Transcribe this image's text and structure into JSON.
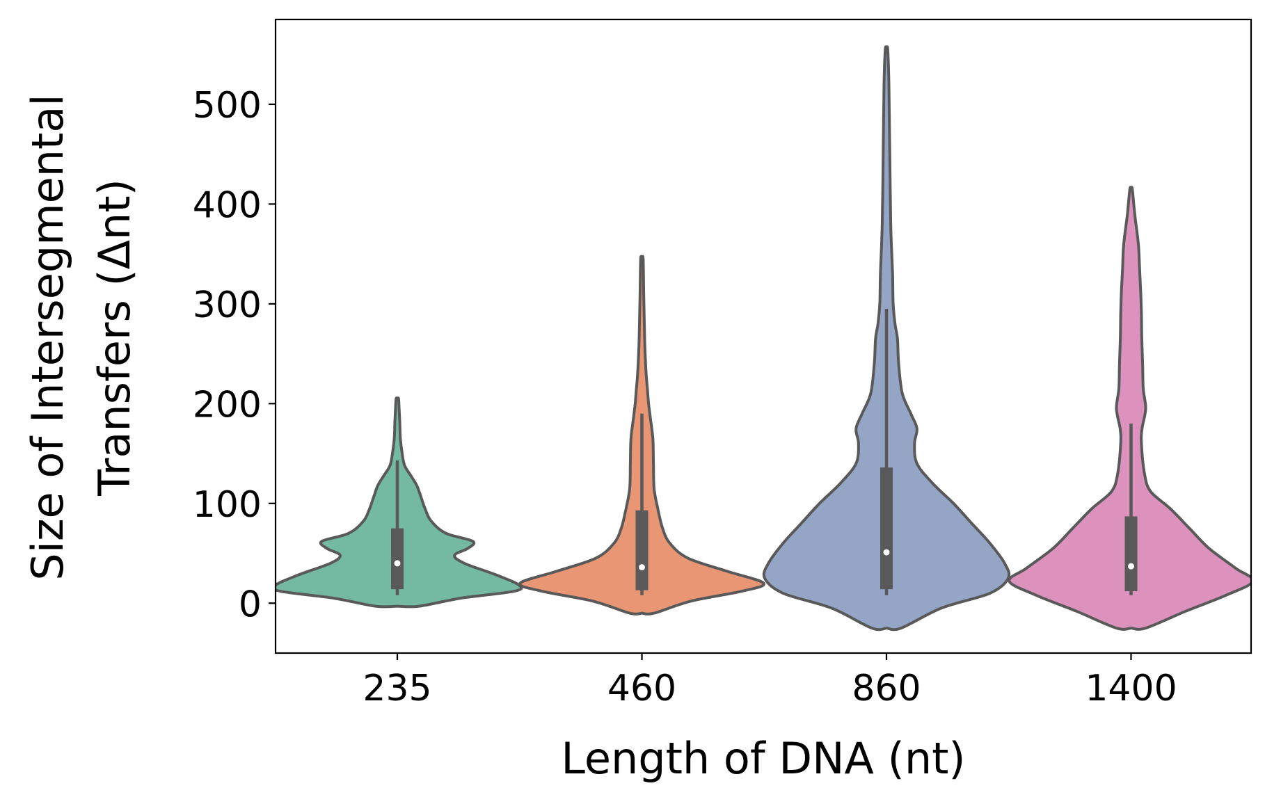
{
  "chart_data": {
    "type": "violin",
    "title": "",
    "xlabel": "Length of DNA (nt)",
    "ylabel_lines": [
      "Size of Intersegmental",
      "Transfers (Δnt)"
    ],
    "ylim": [
      -50,
      585
    ],
    "yticks": [
      0,
      100,
      200,
      300,
      400,
      500
    ],
    "ytick_labels": [
      "0",
      "100",
      "200",
      "300",
      "400",
      "500"
    ],
    "categories": [
      "235",
      "460",
      "860",
      "1400"
    ],
    "grid": false,
    "legend": "none",
    "series": [
      {
        "category": "235",
        "color": "#74b9a1",
        "box": {
          "min": 8,
          "q1": 14,
          "median": 40,
          "q3": 75,
          "max": 143
        },
        "density": [
          [
            -3,
            0.18
          ],
          [
            5,
            0.52
          ],
          [
            12,
            0.96
          ],
          [
            18,
            1.0
          ],
          [
            28,
            0.82
          ],
          [
            40,
            0.55
          ],
          [
            48,
            0.47
          ],
          [
            55,
            0.58
          ],
          [
            62,
            0.62
          ],
          [
            70,
            0.4
          ],
          [
            82,
            0.28
          ],
          [
            94,
            0.23
          ],
          [
            108,
            0.19
          ],
          [
            118,
            0.16
          ],
          [
            128,
            0.11
          ],
          [
            138,
            0.06
          ],
          [
            150,
            0.04
          ],
          [
            165,
            0.025
          ],
          [
            182,
            0.02
          ],
          [
            195,
            0.015
          ],
          [
            205,
            0.01
          ]
        ]
      },
      {
        "category": "460",
        "color": "#e99675",
        "box": {
          "min": 8,
          "q1": 13,
          "median": 36,
          "q3": 93,
          "max": 190
        },
        "density": [
          [
            -10,
            0.1
          ],
          [
            2,
            0.4
          ],
          [
            12,
            0.82
          ],
          [
            20,
            1.0
          ],
          [
            32,
            0.7
          ],
          [
            45,
            0.38
          ],
          [
            60,
            0.23
          ],
          [
            75,
            0.17
          ],
          [
            95,
            0.13
          ],
          [
            115,
            0.1
          ],
          [
            140,
            0.095
          ],
          [
            165,
            0.09
          ],
          [
            185,
            0.07
          ],
          [
            200,
            0.055
          ],
          [
            215,
            0.045
          ],
          [
            230,
            0.035
          ],
          [
            255,
            0.025
          ],
          [
            280,
            0.02
          ],
          [
            310,
            0.015
          ],
          [
            345,
            0.01
          ]
        ]
      },
      {
        "category": "860",
        "color": "#94a5c5",
        "box": {
          "min": 8,
          "q1": 14,
          "median": 51,
          "q3": 136,
          "max": 295
        },
        "density": [
          [
            -25,
            0.12
          ],
          [
            -5,
            0.45
          ],
          [
            10,
            0.85
          ],
          [
            25,
            1.0
          ],
          [
            40,
            0.97
          ],
          [
            60,
            0.85
          ],
          [
            80,
            0.7
          ],
          [
            100,
            0.55
          ],
          [
            120,
            0.38
          ],
          [
            140,
            0.25
          ],
          [
            160,
            0.23
          ],
          [
            175,
            0.25
          ],
          [
            190,
            0.2
          ],
          [
            210,
            0.13
          ],
          [
            240,
            0.1
          ],
          [
            265,
            0.09
          ],
          [
            280,
            0.07
          ],
          [
            300,
            0.055
          ],
          [
            330,
            0.05
          ],
          [
            360,
            0.04
          ],
          [
            380,
            0.035
          ],
          [
            420,
            0.03
          ],
          [
            470,
            0.025
          ],
          [
            520,
            0.02
          ],
          [
            555,
            0.01
          ]
        ]
      },
      {
        "category": "1400",
        "color": "#dc92bc",
        "box": {
          "min": 8,
          "q1": 12,
          "median": 37,
          "q3": 87,
          "max": 180
        },
        "density": [
          [
            -25,
            0.12
          ],
          [
            -8,
            0.45
          ],
          [
            8,
            0.78
          ],
          [
            22,
            1.0
          ],
          [
            35,
            0.86
          ],
          [
            55,
            0.64
          ],
          [
            75,
            0.48
          ],
          [
            95,
            0.32
          ],
          [
            112,
            0.16
          ],
          [
            130,
            0.11
          ],
          [
            160,
            0.085
          ],
          [
            175,
            0.09
          ],
          [
            195,
            0.12
          ],
          [
            215,
            0.1
          ],
          [
            240,
            0.095
          ],
          [
            265,
            0.088
          ],
          [
            290,
            0.085
          ],
          [
            310,
            0.08
          ],
          [
            335,
            0.07
          ],
          [
            360,
            0.06
          ],
          [
            390,
            0.03
          ],
          [
            415,
            0.01
          ]
        ]
      }
    ]
  }
}
